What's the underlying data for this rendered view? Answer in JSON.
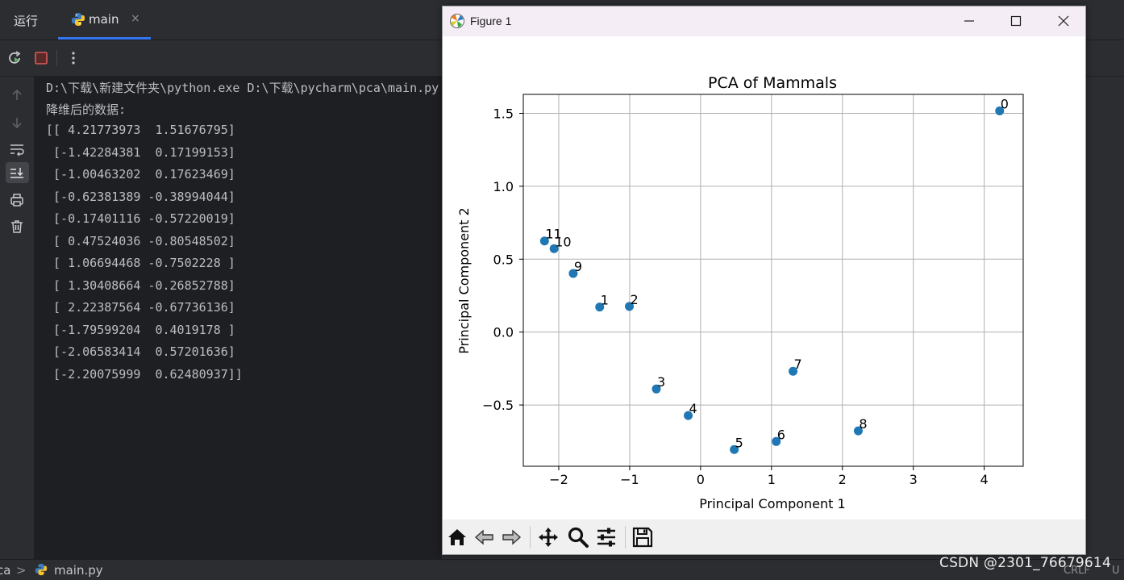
{
  "ide": {
    "run_tab_label": "运行",
    "active_tab": "main",
    "close_glyph": "×"
  },
  "console": {
    "lines": [
      "D:\\下载\\新建文件夹\\python.exe D:\\下载\\pycharm\\pca\\main.py",
      "降维后的数据:",
      "[[ 4.21773973  1.51676795]",
      " [-1.42284381  0.17199153]",
      " [-1.00463202  0.17623469]",
      " [-0.62381389 -0.38994044]",
      " [-0.17401116 -0.57220019]",
      " [ 0.47524036 -0.80548502]",
      " [ 1.06694468 -0.7502228 ]",
      " [ 1.30408664 -0.26852788]",
      " [ 2.22387564 -0.67736136]",
      " [-1.79599204  0.4019178 ]",
      " [-2.06583414  0.57201636]",
      " [-2.20075999  0.62480937]]"
    ]
  },
  "statusbar": {
    "crumb_project": "ca",
    "crumb_sep": ">",
    "crumb_file": "main.py",
    "line_ending": "CRLF",
    "encoding": "U"
  },
  "watermark": "CSDN @2301_76679614",
  "figure_window": {
    "title": "Figure 1"
  },
  "chart_data": {
    "type": "scatter",
    "title": "PCA of Mammals",
    "xlabel": "Principal Component 1",
    "ylabel": "Principal Component 2",
    "xlim": [
      -2.5,
      4.55
    ],
    "ylim": [
      -0.92,
      1.63
    ],
    "xticks": [
      -2,
      -1,
      0,
      1,
      2,
      3,
      4
    ],
    "xtick_labels": [
      "−2",
      "−1",
      "0",
      "1",
      "2",
      "3",
      "4"
    ],
    "yticks": [
      -0.5,
      0.0,
      0.5,
      1.0,
      1.5
    ],
    "ytick_labels": [
      "−0.5",
      "0.0",
      "0.5",
      "1.0",
      "1.5"
    ],
    "grid": true,
    "marker_color": "#1f77b4",
    "points": [
      {
        "label": "0",
        "x": 4.21773973,
        "y": 1.51676795
      },
      {
        "label": "1",
        "x": -1.42284381,
        "y": 0.17199153
      },
      {
        "label": "2",
        "x": -1.00463202,
        "y": 0.17623469
      },
      {
        "label": "3",
        "x": -0.62381389,
        "y": -0.38994044
      },
      {
        "label": "4",
        "x": -0.17401116,
        "y": -0.57220019
      },
      {
        "label": "5",
        "x": 0.47524036,
        "y": -0.80548502
      },
      {
        "label": "6",
        "x": 1.06694468,
        "y": -0.7502228
      },
      {
        "label": "7",
        "x": 1.30408664,
        "y": -0.26852788
      },
      {
        "label": "8",
        "x": 2.22387564,
        "y": -0.67736136
      },
      {
        "label": "9",
        "x": -1.79599204,
        "y": 0.4019178
      },
      {
        "label": "10",
        "x": -2.06583414,
        "y": 0.57201636
      },
      {
        "label": "11",
        "x": -2.20075999,
        "y": 0.62480937
      }
    ]
  }
}
